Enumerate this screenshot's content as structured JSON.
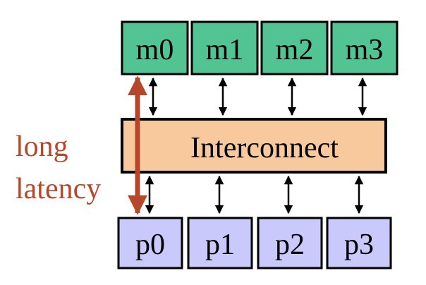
{
  "memory_modules": [
    {
      "label": "m0"
    },
    {
      "label": "m1"
    },
    {
      "label": "m2"
    },
    {
      "label": "m3"
    }
  ],
  "interconnect": {
    "label": "Interconnect"
  },
  "processors": [
    {
      "label": "p0"
    },
    {
      "label": "p1"
    },
    {
      "label": "p2"
    },
    {
      "label": "p3"
    }
  ],
  "latency_note": {
    "line1": "long",
    "line2": "latency"
  },
  "colors": {
    "memory_fill": "#52c493",
    "interconnect_fill": "#f8c99d",
    "processor_fill": "#c9c9fb",
    "latency_accent": "#b7472a",
    "outline": "#000000"
  }
}
